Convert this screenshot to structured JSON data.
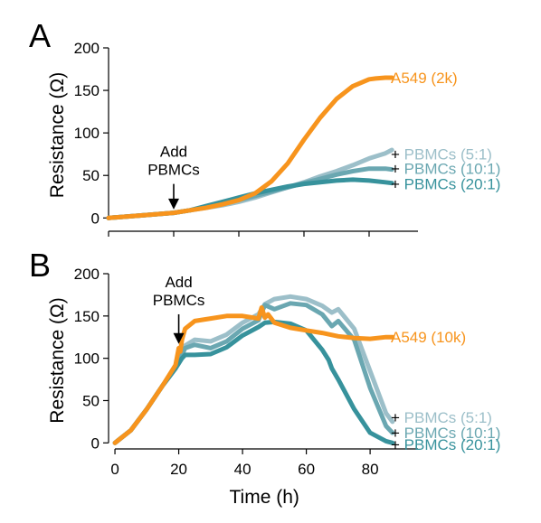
{
  "colors": {
    "a549": "#f7941d",
    "pbmc_5_1": "#9cbfc9",
    "pbmc_10_1": "#6aa7b1",
    "pbmc_20_1": "#37929c",
    "axis": "#000000"
  },
  "chart_data": [
    {
      "type": "line",
      "panel": "A",
      "ylabel": "Resistance (Ω)",
      "xlabel": "",
      "xlim": [
        0,
        95
      ],
      "ylim": [
        -5,
        200
      ],
      "xticks": [
        0,
        20,
        40,
        60,
        80
      ],
      "yticks": [
        0,
        50,
        100,
        150,
        200
      ],
      "show_xtick_labels": false,
      "annotation": {
        "lines": [
          "Add",
          "PBMCs"
        ],
        "x": 20,
        "arrow_from": 40,
        "arrow_to": 10
      },
      "series": [
        {
          "name": "+ PBMCs (5:1)",
          "color": "#9cbfc9",
          "x": [
            0,
            10,
            20,
            25,
            30,
            35,
            40,
            45,
            50,
            55,
            60,
            65,
            70,
            75,
            80,
            85,
            87
          ],
          "y": [
            0,
            3,
            6,
            9,
            12,
            15,
            19,
            24,
            30,
            36,
            42,
            49,
            55,
            62,
            70,
            76,
            80
          ]
        },
        {
          "name": "+ PBMCs (10:1)",
          "color": "#6aa7b1",
          "x": [
            0,
            10,
            20,
            25,
            30,
            35,
            40,
            45,
            50,
            55,
            60,
            65,
            70,
            75,
            80,
            85,
            87
          ],
          "y": [
            0,
            3,
            6,
            9,
            13,
            17,
            21,
            26,
            31,
            36,
            41,
            46,
            51,
            55,
            58,
            58,
            57
          ]
        },
        {
          "name": "+ PBMCs (20:1)",
          "color": "#37929c",
          "x": [
            0,
            10,
            20,
            25,
            30,
            35,
            40,
            45,
            50,
            55,
            60,
            65,
            70,
            75,
            80,
            85,
            87
          ],
          "y": [
            0,
            3,
            6,
            9,
            14,
            19,
            24,
            29,
            33,
            37,
            40,
            42,
            44,
            45,
            44,
            42,
            41
          ]
        },
        {
          "name": "A549 (2k)",
          "color": "#f7941d",
          "x": [
            0,
            10,
            20,
            25,
            30,
            35,
            40,
            45,
            50,
            55,
            60,
            65,
            70,
            75,
            80,
            82,
            85,
            87
          ],
          "y": [
            0,
            3,
            6,
            9,
            12,
            16,
            21,
            29,
            43,
            64,
            92,
            118,
            140,
            155,
            163,
            164,
            165,
            165
          ]
        }
      ],
      "series_labels_order": [
        "A549 (2k)",
        "+ PBMCs (5:1)",
        "+ PBMCs (10:1)",
        "+ PBMCs (20:1)"
      ],
      "label_values": [
        165,
        75,
        58,
        40
      ]
    },
    {
      "type": "line",
      "panel": "B",
      "ylabel": "Resistance (Ω)",
      "xlabel": "Time (h)",
      "xlim": [
        -2,
        95
      ],
      "ylim": [
        -5,
        200
      ],
      "xticks": [
        0,
        20,
        40,
        60,
        80
      ],
      "yticks": [
        0,
        50,
        100,
        150,
        200
      ],
      "show_xtick_labels": true,
      "annotation": {
        "lines": [
          "Add",
          "PBMCs"
        ],
        "x": 20,
        "arrow_from": 152,
        "arrow_to": 117
      },
      "series": [
        {
          "name": "+ PBMCs (5:1)",
          "color": "#9cbfc9",
          "x": [
            0,
            5,
            10,
            15,
            19,
            20,
            21,
            22,
            25,
            30,
            35,
            40,
            45,
            47,
            50,
            55,
            60,
            65,
            68,
            70,
            75,
            80,
            85,
            87
          ],
          "y": [
            0,
            15,
            40,
            68,
            88,
            100,
            106,
            115,
            122,
            120,
            128,
            142,
            152,
            164,
            170,
            173,
            170,
            162,
            154,
            158,
            135,
            85,
            35,
            25
          ]
        },
        {
          "name": "+ PBMCs (10:1)",
          "color": "#6aa7b1",
          "x": [
            0,
            5,
            10,
            15,
            19,
            20,
            21,
            22,
            25,
            30,
            35,
            40,
            45,
            47,
            50,
            55,
            60,
            65,
            68,
            70,
            75,
            80,
            85,
            87
          ],
          "y": [
            0,
            15,
            40,
            68,
            88,
            98,
            104,
            112,
            116,
            112,
            120,
            135,
            145,
            163,
            158,
            165,
            163,
            152,
            138,
            144,
            122,
            65,
            20,
            12
          ]
        },
        {
          "name": "+ PBMCs (20:1)",
          "color": "#37929c",
          "x": [
            0,
            5,
            10,
            15,
            19,
            20,
            21,
            22,
            25,
            30,
            35,
            40,
            45,
            47,
            50,
            55,
            60,
            65,
            67,
            68,
            70,
            75,
            80,
            85,
            87
          ],
          "y": [
            0,
            15,
            40,
            68,
            88,
            94,
            100,
            104,
            104,
            105,
            113,
            127,
            137,
            142,
            143,
            141,
            133,
            110,
            98,
            88,
            75,
            40,
            12,
            2,
            0
          ]
        },
        {
          "name": "A549 (10k)",
          "color": "#f7941d",
          "x": [
            0,
            5,
            10,
            15,
            19,
            20,
            20.5,
            21,
            22,
            25,
            30,
            35,
            40,
            45,
            46,
            47,
            48,
            50,
            55,
            60,
            65,
            70,
            75,
            80,
            85,
            87
          ],
          "y": [
            0,
            15,
            40,
            68,
            92,
            112,
            108,
            122,
            135,
            144,
            147,
            150,
            150,
            147,
            160,
            148,
            152,
            142,
            136,
            133,
            130,
            126,
            124,
            123,
            125,
            125
          ]
        }
      ],
      "series_labels_order": [
        "A549 (10k)",
        "+ PBMCs (5:1)",
        "+ PBMCs (10:1)",
        "+ PBMCs (20:1)"
      ],
      "label_values": [
        125,
        30,
        12,
        -2
      ]
    }
  ]
}
